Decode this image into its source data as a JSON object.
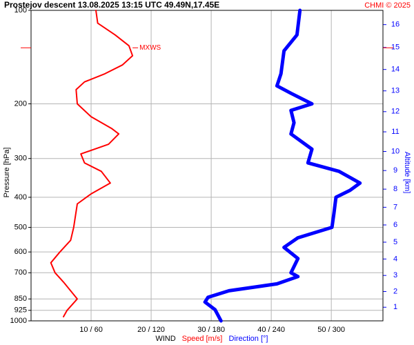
{
  "chart_data": {
    "type": "line",
    "title": "Prostejov  descent  13.08.2025 13:15 UTC  49.49N,17.45E",
    "credit": "CHMI © 2025",
    "ylabel": "Pressure [hPa]",
    "y2label": "Altitude [km]",
    "xlabel": "WIND",
    "y_scale": "log",
    "grid": true,
    "ylim": [
      1000,
      100
    ],
    "yticks": [
      100,
      200,
      300,
      400,
      500,
      600,
      700,
      850,
      925,
      1000
    ],
    "y2ticks": [
      1,
      2,
      3,
      4,
      5,
      6,
      7,
      8,
      9,
      10,
      11,
      12,
      13,
      14,
      15,
      16
    ],
    "y2color": "#0000ff",
    "xlim": [
      0,
      58.6
    ],
    "x2lim": [
      0,
      352
    ],
    "xticks": [
      {
        "value": 10,
        "label": "10 / 60"
      },
      {
        "value": 20,
        "label": "20 / 120"
      },
      {
        "value": 30,
        "label": "30 / 180"
      },
      {
        "value": 40,
        "label": "40 / 240"
      },
      {
        "value": 50,
        "label": "50 / 300"
      }
    ],
    "annotation": {
      "text": "MXWS",
      "value": 16.9,
      "pressure": 132,
      "color": "#ff0000"
    },
    "series": [
      {
        "name": "Speed [m/s]",
        "color": "#ff0000",
        "width": 2,
        "pressure": [
          100,
          110,
          120,
          130,
          140,
          150,
          160,
          170,
          180,
          200,
          220,
          240,
          250,
          270,
          290,
          310,
          330,
          360,
          390,
          420,
          500,
          550,
          600,
          650,
          700,
          750,
          850,
          925,
          970
        ],
        "values": [
          10.8,
          11.1,
          14,
          16.3,
          16.9,
          15.2,
          12.3,
          8.9,
          7.5,
          7.7,
          10,
          13.4,
          14.6,
          12.9,
          8.3,
          8.9,
          11.7,
          13.2,
          10,
          7.7,
          7.1,
          6.6,
          4.8,
          3.3,
          4,
          5.4,
          7.7,
          6,
          5.4
        ]
      },
      {
        "name": "Direction [°]",
        "color": "#0000ff",
        "width": 5,
        "axis": "x2",
        "pressure": [
          100,
          120,
          135,
          160,
          175,
          185,
          200,
          210,
          230,
          250,
          280,
          310,
          330,
          360,
          380,
          400,
          450,
          500,
          540,
          580,
          630,
          700,
          720,
          760,
          800,
          840,
          870,
          920,
          1000
        ],
        "values": [
          269,
          266,
          253,
          250,
          246,
          260,
          281,
          260,
          263,
          260,
          281,
          277,
          308,
          329,
          319,
          305,
          303,
          301,
          267,
          253,
          267,
          260,
          267,
          246,
          198,
          177,
          174,
          184,
          190
        ]
      }
    ]
  }
}
